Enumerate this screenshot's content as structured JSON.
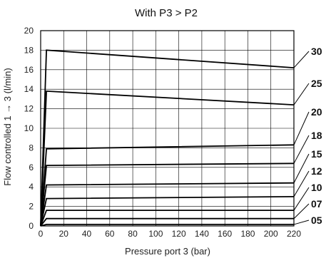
{
  "chart_data": {
    "type": "line",
    "title": "With P3 > P2",
    "xlabel": "Pressure port 3 (bar)",
    "ylabel": "Flow controlled  1 → 3 (l/min)",
    "xlim": [
      0,
      220
    ],
    "ylim": [
      0,
      20
    ],
    "xticks": [
      "0",
      "20",
      "40",
      "60",
      "80",
      "100",
      "120",
      "140",
      "160",
      "180",
      "200",
      "220"
    ],
    "yticks": [
      "0",
      "2",
      "4",
      "6",
      "8",
      "10",
      "12",
      "14",
      "16",
      "18",
      "20"
    ],
    "grid": true,
    "colors": {
      "line": "#000000",
      "grid": "#000000"
    },
    "series": [
      {
        "name": "30",
        "x": [
          0,
          5,
          220
        ],
        "y": [
          0,
          18.0,
          16.2
        ]
      },
      {
        "name": "25",
        "x": [
          0,
          5,
          220
        ],
        "y": [
          0,
          13.8,
          12.4
        ]
      },
      {
        "name": "20",
        "x": [
          0,
          5,
          220
        ],
        "y": [
          0,
          7.9,
          8.3
        ]
      },
      {
        "name": "18",
        "x": [
          0,
          5,
          220
        ],
        "y": [
          0,
          6.2,
          6.4
        ]
      },
      {
        "name": "15",
        "x": [
          0,
          5,
          220
        ],
        "y": [
          0,
          4.2,
          4.4
        ]
      },
      {
        "name": "12",
        "x": [
          0,
          5,
          220
        ],
        "y": [
          0,
          2.8,
          3.0
        ]
      },
      {
        "name": "10",
        "x": [
          0,
          5,
          220
        ],
        "y": [
          0,
          1.6,
          1.6
        ]
      },
      {
        "name": "07",
        "x": [
          0,
          5,
          220
        ],
        "y": [
          0,
          0.75,
          0.75
        ]
      },
      {
        "name": "05",
        "x": [
          0,
          5,
          220
        ],
        "y": [
          0,
          0.15,
          0.15
        ]
      }
    ]
  }
}
